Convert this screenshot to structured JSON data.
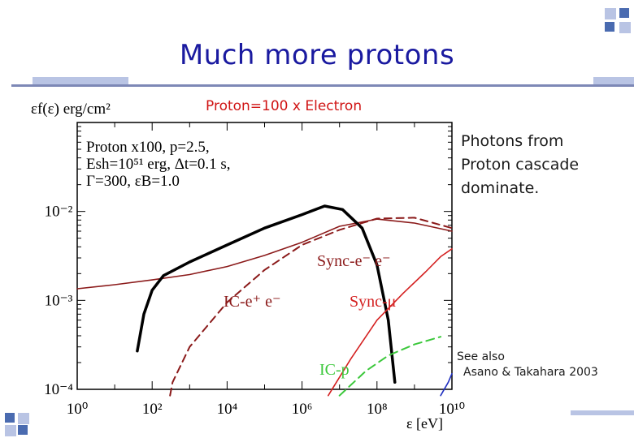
{
  "slide": {
    "title": "Much more protons",
    "subtitle": "Proton=100 x Electron",
    "callout": [
      "Photons from",
      "Proton cascade",
      "dominate."
    ],
    "reference": [
      "See also",
      "Asano & Takahara 2003"
    ]
  },
  "colors": {
    "title": "#1a1aa0",
    "subtitle": "#d01414",
    "black_curve": "#000000",
    "dark_red": "#8b1a1a",
    "red": "#d42020",
    "green": "#3cc83c",
    "blue": "#2030c0"
  },
  "chart_data": {
    "type": "line",
    "title": "",
    "ylabel": "εf(ε) erg/cm²",
    "xlabel": "ε [eV]",
    "xscale": "log",
    "yscale": "log",
    "xlim": [
      1,
      10000000000
    ],
    "ylim": [
      0.0001,
      0.1
    ],
    "x_ticks": [
      "10⁰",
      "10²",
      "10⁴",
      "10⁶",
      "10⁸",
      "10¹⁰"
    ],
    "y_ticks": [
      "10⁻²",
      "10⁻³",
      "10⁻⁴"
    ],
    "annotation": [
      "Proton x100, p=2.5,",
      "Esh=10⁵¹ erg, Δt=0.1 s,",
      "Γ=300, εB=1.0"
    ],
    "series": [
      {
        "name": "Sync-e⁻ e⁻",
        "style": "solid-thin",
        "color": "#8b1a1a",
        "points": [
          [
            1,
            0.00135
          ],
          [
            10,
            0.0015
          ],
          [
            100,
            0.0017
          ],
          [
            1000,
            0.00195
          ],
          [
            10000,
            0.0024
          ],
          [
            100000,
            0.0032
          ],
          [
            1000000,
            0.0045
          ],
          [
            10000000,
            0.0068
          ],
          [
            100000000,
            0.0082
          ],
          [
            1000000000,
            0.0074
          ],
          [
            10000000000,
            0.006
          ]
        ]
      },
      {
        "name": "",
        "style": "solid-thick",
        "color": "#000000",
        "points": [
          [
            40,
            0.00027
          ],
          [
            60,
            0.0007
          ],
          [
            100,
            0.0013
          ],
          [
            200,
            0.0019
          ],
          [
            1000,
            0.0027
          ],
          [
            10000,
            0.0042
          ],
          [
            100000,
            0.0065
          ],
          [
            1000000,
            0.0092
          ],
          [
            4000000,
            0.0115
          ],
          [
            12000000,
            0.0105
          ],
          [
            40000000,
            0.0065
          ],
          [
            100000000,
            0.0025
          ],
          [
            200000000,
            0.0006
          ],
          [
            300000000,
            0.00012
          ]
        ]
      },
      {
        "name": "IC-e⁺ e⁻",
        "style": "dashed",
        "color": "#8b1a1a",
        "points": [
          [
            300,
            8.5e-05
          ],
          [
            350,
            0.00012
          ],
          [
            1000,
            0.0003
          ],
          [
            10000,
            0.00095
          ],
          [
            100000,
            0.0022
          ],
          [
            1000000,
            0.0042
          ],
          [
            10000000,
            0.0062
          ],
          [
            100000000,
            0.0083
          ],
          [
            1000000000,
            0.0085
          ],
          [
            10000000000,
            0.0065
          ]
        ]
      },
      {
        "name": "Sync-μ",
        "style": "solid-thin",
        "color": "#d42020",
        "points": [
          [
            5000000,
            8.5e-05
          ],
          [
            20000000,
            0.00022
          ],
          [
            100000000,
            0.0006
          ],
          [
            500000000,
            0.0012
          ],
          [
            2000000000,
            0.0021
          ],
          [
            5000000000,
            0.0031
          ],
          [
            10000000000,
            0.0038
          ]
        ]
      },
      {
        "name": "IC-p",
        "style": "dashed",
        "color": "#3cc83c",
        "points": [
          [
            10000000,
            8.5e-05
          ],
          [
            50000000,
            0.00016
          ],
          [
            200000000,
            0.00024
          ],
          [
            1000000000,
            0.00032
          ],
          [
            5000000000,
            0.00039
          ]
        ]
      },
      {
        "name": "",
        "style": "solid-thin",
        "color": "#2030c0",
        "points": [
          [
            5000000000,
            8.5e-05
          ],
          [
            8000000000,
            0.00012
          ],
          [
            10000000000,
            0.00015
          ]
        ]
      }
    ]
  }
}
